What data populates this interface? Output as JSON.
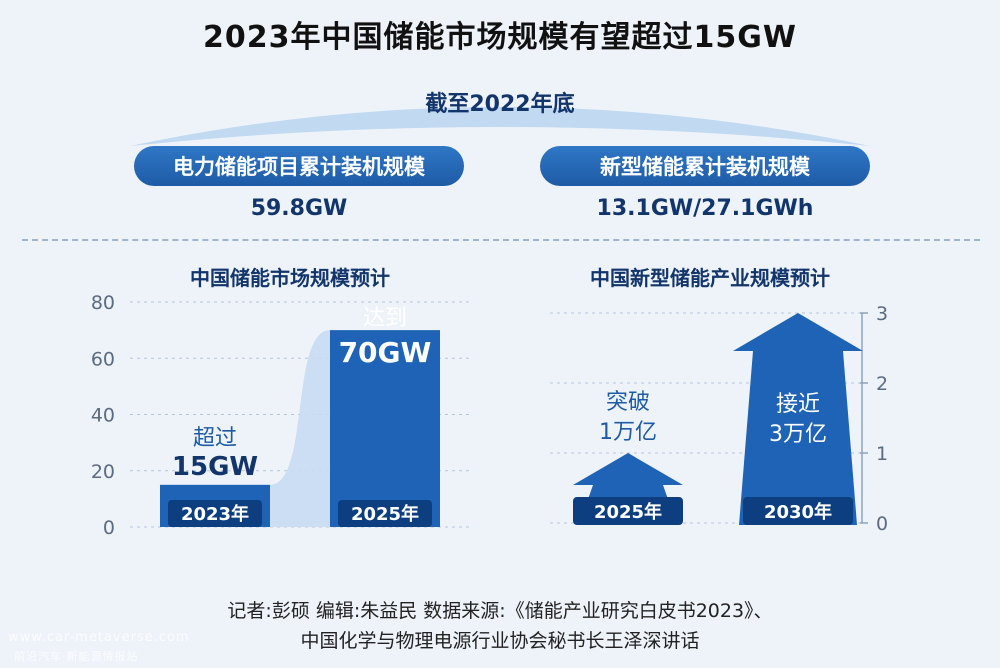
{
  "title": "2023年中国储能市场规模有望超过15GW",
  "subtitle": "截至2022年底",
  "stats": [
    {
      "label": "电力储能项目累计装机规模",
      "value": "59.8GW"
    },
    {
      "label": "新型储能累计装机规模",
      "value": "13.1GW/27.1GWh"
    }
  ],
  "chart_data": [
    {
      "type": "bar",
      "title": "中国储能市场规模预计",
      "categories": [
        "2023年",
        "2025年"
      ],
      "values": [
        15,
        70
      ],
      "value_labels": [
        {
          "top": "超过",
          "value": "15GW"
        },
        {
          "top": "达到",
          "value": "70GW"
        }
      ],
      "ylim": [
        0,
        80
      ],
      "yticks": [
        "0",
        "20",
        "40",
        "60",
        "80"
      ],
      "bar_color": "#1e63b5"
    },
    {
      "type": "bar",
      "title": "中国新型储能产业规模预计",
      "categories": [
        "2025年",
        "2030年"
      ],
      "values": [
        1,
        3
      ],
      "value_labels": [
        {
          "top": "突破",
          "value": "1万亿"
        },
        {
          "top": "接近",
          "value": "3万亿"
        }
      ],
      "ylim": [
        0,
        3
      ],
      "yticks": [
        "0",
        "1",
        "2",
        "3"
      ],
      "bar_color": "#1e63b5"
    }
  ],
  "footer": {
    "line1": "记者:彭硕   编辑:朱益民   数据来源:《储能产业研究白皮书2023》、",
    "line2": "中国化学与物理电源行业协会秘书长王泽深讲话"
  },
  "watermark": {
    "line1": "www.car-metaverse.com",
    "line2": "前沿汽车·新能源情报站"
  }
}
